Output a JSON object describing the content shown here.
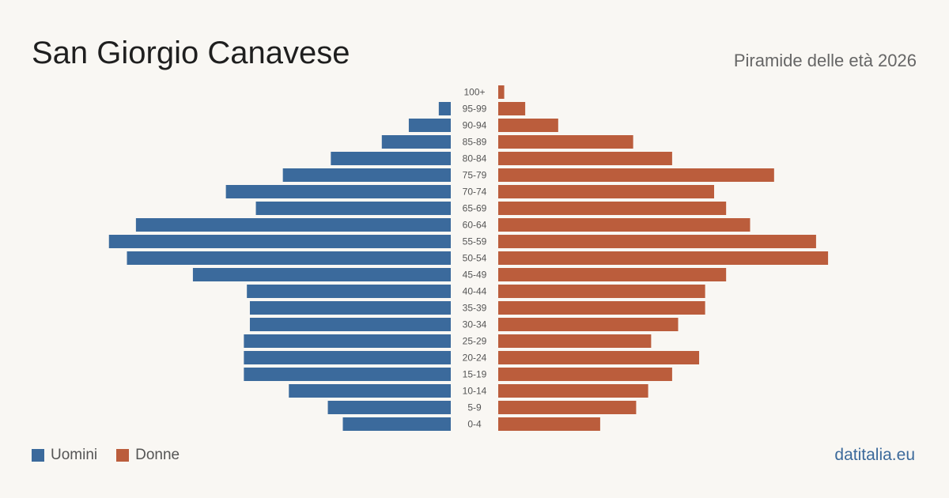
{
  "header": {
    "title": "San Giorgio Canavese",
    "subtitle": "Piramide delle età 2026"
  },
  "legend": {
    "men_label": "Uomini",
    "women_label": "Donne"
  },
  "footer": {
    "source": "datitalia.eu"
  },
  "colors": {
    "men": "#3b6a9c",
    "women": "#bb5d3c",
    "tick_text": "#555555"
  },
  "chart_data": {
    "type": "bar",
    "orientation": "population-pyramid",
    "categories": [
      "100+",
      "95-99",
      "90-94",
      "85-89",
      "80-84",
      "75-79",
      "70-74",
      "65-69",
      "60-64",
      "55-59",
      "50-54",
      "45-49",
      "40-44",
      "35-39",
      "30-34",
      "25-29",
      "20-24",
      "15-19",
      "10-14",
      "5-9",
      "0-4"
    ],
    "series": [
      {
        "name": "Uomini",
        "values": [
          0,
          4,
          14,
          23,
          40,
          56,
          75,
          65,
          105,
          114,
          108,
          86,
          68,
          67,
          67,
          69,
          69,
          69,
          54,
          41,
          36
        ]
      },
      {
        "name": "Donne",
        "values": [
          2,
          9,
          20,
          45,
          58,
          92,
          72,
          76,
          84,
          106,
          110,
          76,
          69,
          69,
          60,
          51,
          67,
          58,
          50,
          46,
          34
        ]
      }
    ],
    "xlim": [
      0,
      120
    ],
    "grid": false,
    "legend_position": "bottom-left"
  }
}
